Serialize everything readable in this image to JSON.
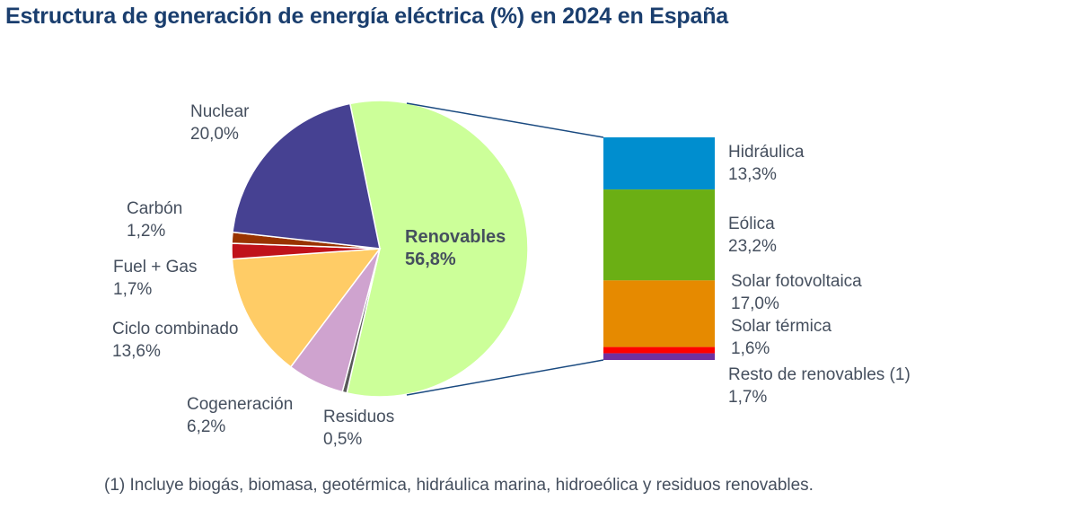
{
  "chart_data": [
    {
      "type": "pie",
      "title": "Estructura de generación de energía eléctrica (%) en 2024 en España",
      "slices": [
        {
          "label": "Renovables",
          "value": 56.8,
          "display": "56,8%",
          "color": "#ccff99"
        },
        {
          "label": "Residuos",
          "value": 0.5,
          "display": "0,5%",
          "color": "#595959"
        },
        {
          "label": "Cogeneración",
          "value": 6.2,
          "display": "6,2%",
          "color": "#cfa3cf"
        },
        {
          "label": "Ciclo combinado",
          "value": 13.6,
          "display": "13,6%",
          "color": "#ffcc66"
        },
        {
          "label": "Fuel + Gas",
          "value": 1.7,
          "display": "1,7%",
          "color": "#c0121a"
        },
        {
          "label": "Carbón",
          "value": 1.2,
          "display": "1,2%",
          "color": "#993300"
        },
        {
          "label": "Nuclear",
          "value": 20.0,
          "display": "20,0%",
          "color": "#464192"
        }
      ]
    },
    {
      "type": "bar",
      "stacked": true,
      "breakdown_of": "Renovables",
      "segments": [
        {
          "label": "Hidráulica",
          "value": 13.3,
          "display": "13,3%",
          "color": "#008ecf"
        },
        {
          "label": "Eólica",
          "value": 23.2,
          "display": "23,2%",
          "color": "#6baf14"
        },
        {
          "label": "Solar fotovoltaica",
          "value": 17.0,
          "display": "17,0%",
          "color": "#e68a00"
        },
        {
          "label": "Solar térmica",
          "value": 1.6,
          "display": "1,6%",
          "color": "#ff0000"
        },
        {
          "label": "Resto de renovables (1)",
          "value": 1.7,
          "display": "1,7%",
          "color": "#7030a0"
        }
      ]
    }
  ],
  "connector_color": "#1a4a80",
  "footnote": "(1) Incluye biogás, biomasa, geotérmica, hidráulica marina, hidroeólica y residuos renovables."
}
